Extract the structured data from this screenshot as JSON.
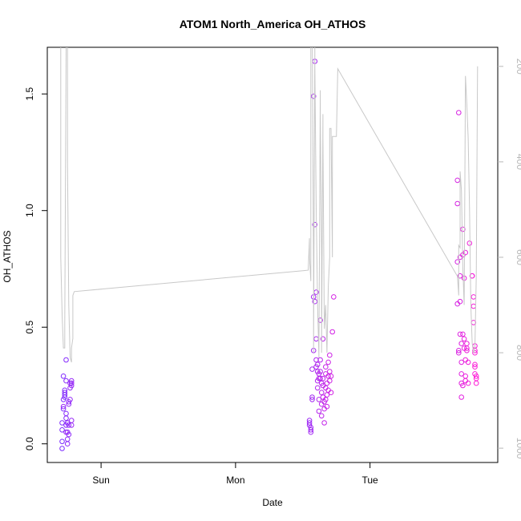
{
  "chart_data": {
    "type": "scatter",
    "title": "ATOM1 North_America OH_ATHOS",
    "xlabel": "Date",
    "ylabel": "OH_ATHOS",
    "x_ticks": [
      {
        "label": "Sun",
        "day": 1.0
      },
      {
        "label": "Mon",
        "day": 2.0
      },
      {
        "label": "Tue",
        "day": 3.0
      }
    ],
    "y_ticks": [
      0.0,
      0.5,
      1.0,
      1.5
    ],
    "y_tick_labels": [
      "0.0",
      "0.5",
      "1.0",
      "1.5"
    ],
    "ylim": [
      -0.08,
      1.7
    ],
    "xlim": [
      0.6,
      3.95
    ],
    "right_axis": {
      "ticks": [
        200,
        400,
        600,
        800,
        1000
      ],
      "tick_labels": [
        "200",
        "400",
        "600",
        "800",
        "1000"
      ],
      "lim": [
        1030,
        160
      ],
      "color": "#b8b8b8"
    },
    "series": [
      {
        "kind": "points",
        "color_start": "#7b2cff",
        "color_end": "#ff1dd6",
        "points": [
          [
            0.71,
            0.01
          ],
          [
            0.71,
            -0.02
          ],
          [
            0.71,
            0.06
          ],
          [
            0.71,
            0.09
          ],
          [
            0.72,
            0.15
          ],
          [
            0.72,
            0.19
          ],
          [
            0.72,
            0.29
          ],
          [
            0.73,
            0.2
          ],
          [
            0.73,
            0.21
          ],
          [
            0.73,
            0.22
          ],
          [
            0.73,
            0.23
          ],
          [
            0.74,
            0.36
          ],
          [
            0.74,
            0.27
          ],
          [
            0.74,
            0.13
          ],
          [
            0.74,
            0.11
          ],
          [
            0.74,
            0.08
          ],
          [
            0.75,
            0.09
          ],
          [
            0.75,
            0.02
          ],
          [
            0.75,
            0.0
          ],
          [
            0.75,
            0.05
          ],
          [
            0.75,
            0.09
          ],
          [
            0.76,
            0.04
          ],
          [
            0.76,
            0.08
          ],
          [
            0.76,
            0.17
          ],
          [
            0.76,
            0.18
          ],
          [
            0.77,
            0.19
          ],
          [
            0.77,
            0.24
          ],
          [
            0.77,
            0.26
          ],
          [
            0.78,
            0.25
          ],
          [
            0.78,
            0.27
          ],
          [
            0.78,
            0.26
          ],
          [
            0.78,
            0.1
          ],
          [
            0.78,
            0.08
          ],
          [
            0.72,
            0.16
          ],
          [
            0.74,
            0.05
          ],
          [
            2.55,
            0.1
          ],
          [
            2.55,
            0.09
          ],
          [
            2.55,
            0.08
          ],
          [
            2.56,
            0.07
          ],
          [
            2.56,
            0.06
          ],
          [
            2.56,
            0.05
          ],
          [
            2.57,
            0.19
          ],
          [
            2.57,
            0.2
          ],
          [
            2.57,
            0.32
          ],
          [
            2.58,
            0.4
          ],
          [
            2.58,
            0.63
          ],
          [
            2.58,
            1.49
          ],
          [
            2.59,
            1.64
          ],
          [
            2.59,
            0.94
          ],
          [
            2.59,
            0.61
          ],
          [
            2.6,
            0.65
          ],
          [
            2.6,
            0.45
          ],
          [
            2.6,
            0.36
          ],
          [
            2.6,
            0.33
          ],
          [
            2.61,
            0.34
          ],
          [
            2.61,
            0.31
          ],
          [
            2.61,
            0.27
          ],
          [
            2.61,
            0.24
          ],
          [
            2.62,
            0.3
          ],
          [
            2.62,
            0.28
          ],
          [
            2.62,
            0.19
          ],
          [
            2.62,
            0.14
          ],
          [
            2.63,
            0.53
          ],
          [
            2.63,
            0.36
          ],
          [
            2.63,
            0.31
          ],
          [
            2.63,
            0.28
          ],
          [
            2.64,
            0.26
          ],
          [
            2.64,
            0.22
          ],
          [
            2.64,
            0.17
          ],
          [
            2.64,
            0.12
          ],
          [
            2.65,
            0.45
          ],
          [
            2.65,
            0.28
          ],
          [
            2.65,
            0.25
          ],
          [
            2.65,
            0.2
          ],
          [
            2.66,
            0.18
          ],
          [
            2.66,
            0.15
          ],
          [
            2.66,
            0.09
          ],
          [
            2.67,
            0.33
          ],
          [
            2.67,
            0.3
          ],
          [
            2.67,
            0.24
          ],
          [
            2.67,
            0.19
          ],
          [
            2.68,
            0.26
          ],
          [
            2.68,
            0.21
          ],
          [
            2.68,
            0.16
          ],
          [
            2.69,
            0.35
          ],
          [
            2.69,
            0.29
          ],
          [
            2.69,
            0.23
          ],
          [
            2.7,
            0.38
          ],
          [
            2.7,
            0.31
          ],
          [
            2.7,
            0.27
          ],
          [
            2.71,
            0.29
          ],
          [
            2.71,
            0.22
          ],
          [
            2.72,
            0.48
          ],
          [
            2.73,
            0.63
          ],
          [
            3.65,
            0.6
          ],
          [
            3.65,
            0.78
          ],
          [
            3.65,
            1.13
          ],
          [
            3.65,
            1.03
          ],
          [
            3.66,
            1.42
          ],
          [
            3.66,
            0.4
          ],
          [
            3.66,
            0.39
          ],
          [
            3.67,
            0.61
          ],
          [
            3.67,
            0.8
          ],
          [
            3.67,
            0.72
          ],
          [
            3.67,
            0.47
          ],
          [
            3.68,
            0.43
          ],
          [
            3.68,
            0.35
          ],
          [
            3.68,
            0.3
          ],
          [
            3.68,
            0.26
          ],
          [
            3.68,
            0.2
          ],
          [
            3.69,
            0.92
          ],
          [
            3.69,
            0.81
          ],
          [
            3.69,
            0.47
          ],
          [
            3.69,
            0.25
          ],
          [
            3.7,
            0.71
          ],
          [
            3.7,
            0.45
          ],
          [
            3.7,
            0.41
          ],
          [
            3.71,
            0.82
          ],
          [
            3.71,
            0.36
          ],
          [
            3.71,
            0.29
          ],
          [
            3.71,
            0.27
          ],
          [
            3.72,
            0.41
          ],
          [
            3.72,
            0.4
          ],
          [
            3.72,
            0.43
          ],
          [
            3.73,
            0.35
          ],
          [
            3.73,
            0.26
          ],
          [
            3.74,
            0.86
          ],
          [
            3.76,
            0.72
          ],
          [
            3.76,
            0.72
          ],
          [
            3.77,
            0.63
          ],
          [
            3.77,
            0.59
          ],
          [
            3.77,
            0.52
          ],
          [
            3.78,
            0.42
          ],
          [
            3.78,
            0.4
          ],
          [
            3.78,
            0.39
          ],
          [
            3.78,
            0.34
          ],
          [
            3.78,
            0.33
          ],
          [
            3.78,
            0.3
          ],
          [
            3.79,
            0.29
          ],
          [
            3.79,
            0.28
          ],
          [
            3.79,
            0.26
          ]
        ]
      },
      {
        "kind": "line",
        "axis": "right",
        "color": "#c8c8c8",
        "points": [
          [
            0.7,
            140
          ],
          [
            0.7,
            600
          ],
          [
            0.71,
            720
          ],
          [
            0.72,
            790
          ],
          [
            0.73,
            790
          ],
          [
            0.73,
            740
          ],
          [
            0.74,
            160
          ],
          [
            0.75,
            150
          ],
          [
            0.75,
            400
          ],
          [
            0.76,
            700
          ],
          [
            0.77,
            810
          ],
          [
            0.78,
            820
          ],
          [
            0.78,
            790
          ],
          [
            0.79,
            770
          ],
          [
            0.79,
            680
          ],
          [
            0.8,
            672
          ],
          [
            2.54,
            627
          ],
          [
            2.55,
            560
          ],
          [
            2.55,
            600
          ],
          [
            2.56,
            650
          ],
          [
            2.56,
            30
          ],
          [
            2.57,
            100
          ],
          [
            2.58,
            650
          ],
          [
            2.58,
            800
          ],
          [
            2.59,
            150
          ],
          [
            2.59,
            200
          ],
          [
            2.6,
            500
          ],
          [
            2.61,
            700
          ],
          [
            2.62,
            810
          ],
          [
            2.62,
            800
          ],
          [
            2.63,
            250
          ],
          [
            2.63,
            300
          ],
          [
            2.64,
            600
          ],
          [
            2.64,
            800
          ],
          [
            2.65,
            300
          ],
          [
            2.65,
            350
          ],
          [
            2.66,
            750
          ],
          [
            2.67,
            700
          ],
          [
            2.68,
            800
          ],
          [
            2.69,
            660
          ],
          [
            2.7,
            600
          ],
          [
            2.7,
            330
          ],
          [
            2.71,
            330
          ],
          [
            2.72,
            600
          ],
          [
            2.72,
            347
          ],
          [
            2.75,
            347
          ],
          [
            2.76,
            205
          ],
          [
            3.65,
            640
          ],
          [
            3.66,
            680
          ],
          [
            3.66,
            575
          ],
          [
            3.67,
            580
          ],
          [
            3.67,
            420
          ],
          [
            3.68,
            460
          ],
          [
            3.69,
            620
          ],
          [
            3.7,
            700
          ],
          [
            3.71,
            220
          ],
          [
            3.72,
            280
          ],
          [
            3.73,
            350
          ],
          [
            3.74,
            500
          ],
          [
            3.75,
            700
          ],
          [
            3.76,
            780
          ],
          [
            3.77,
            800
          ],
          [
            3.78,
            790
          ],
          [
            3.79,
            640
          ],
          [
            3.8,
            200
          ]
        ]
      }
    ]
  }
}
